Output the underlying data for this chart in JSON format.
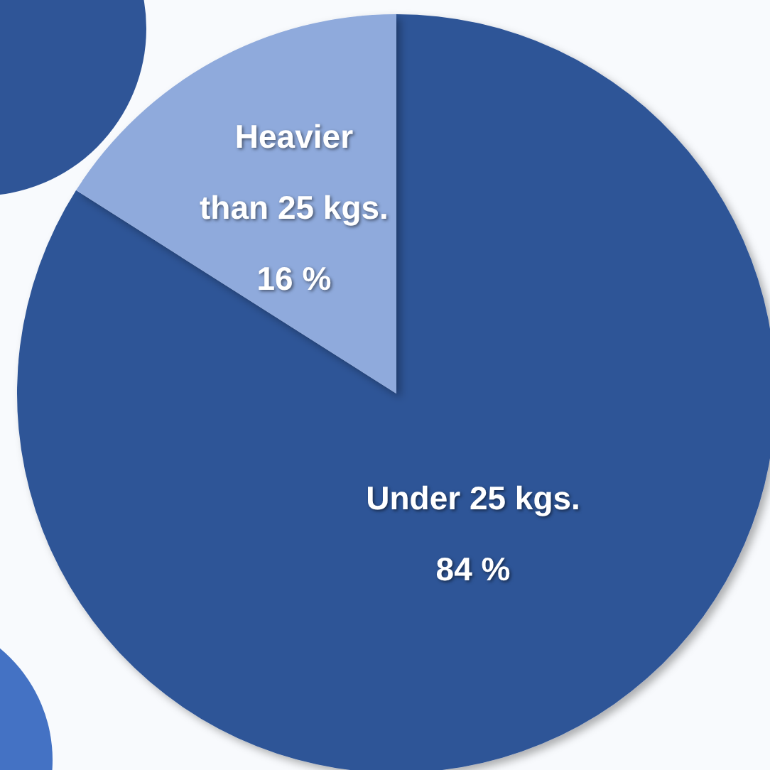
{
  "chart_data": {
    "type": "pie",
    "categories": [
      "Under 25 kgs.",
      "Heavier than 25 kgs."
    ],
    "values": [
      84,
      16
    ],
    "colors": [
      "#2f5597",
      "#8faadc"
    ],
    "value_labels": [
      "84 %",
      "16 %"
    ]
  }
}
